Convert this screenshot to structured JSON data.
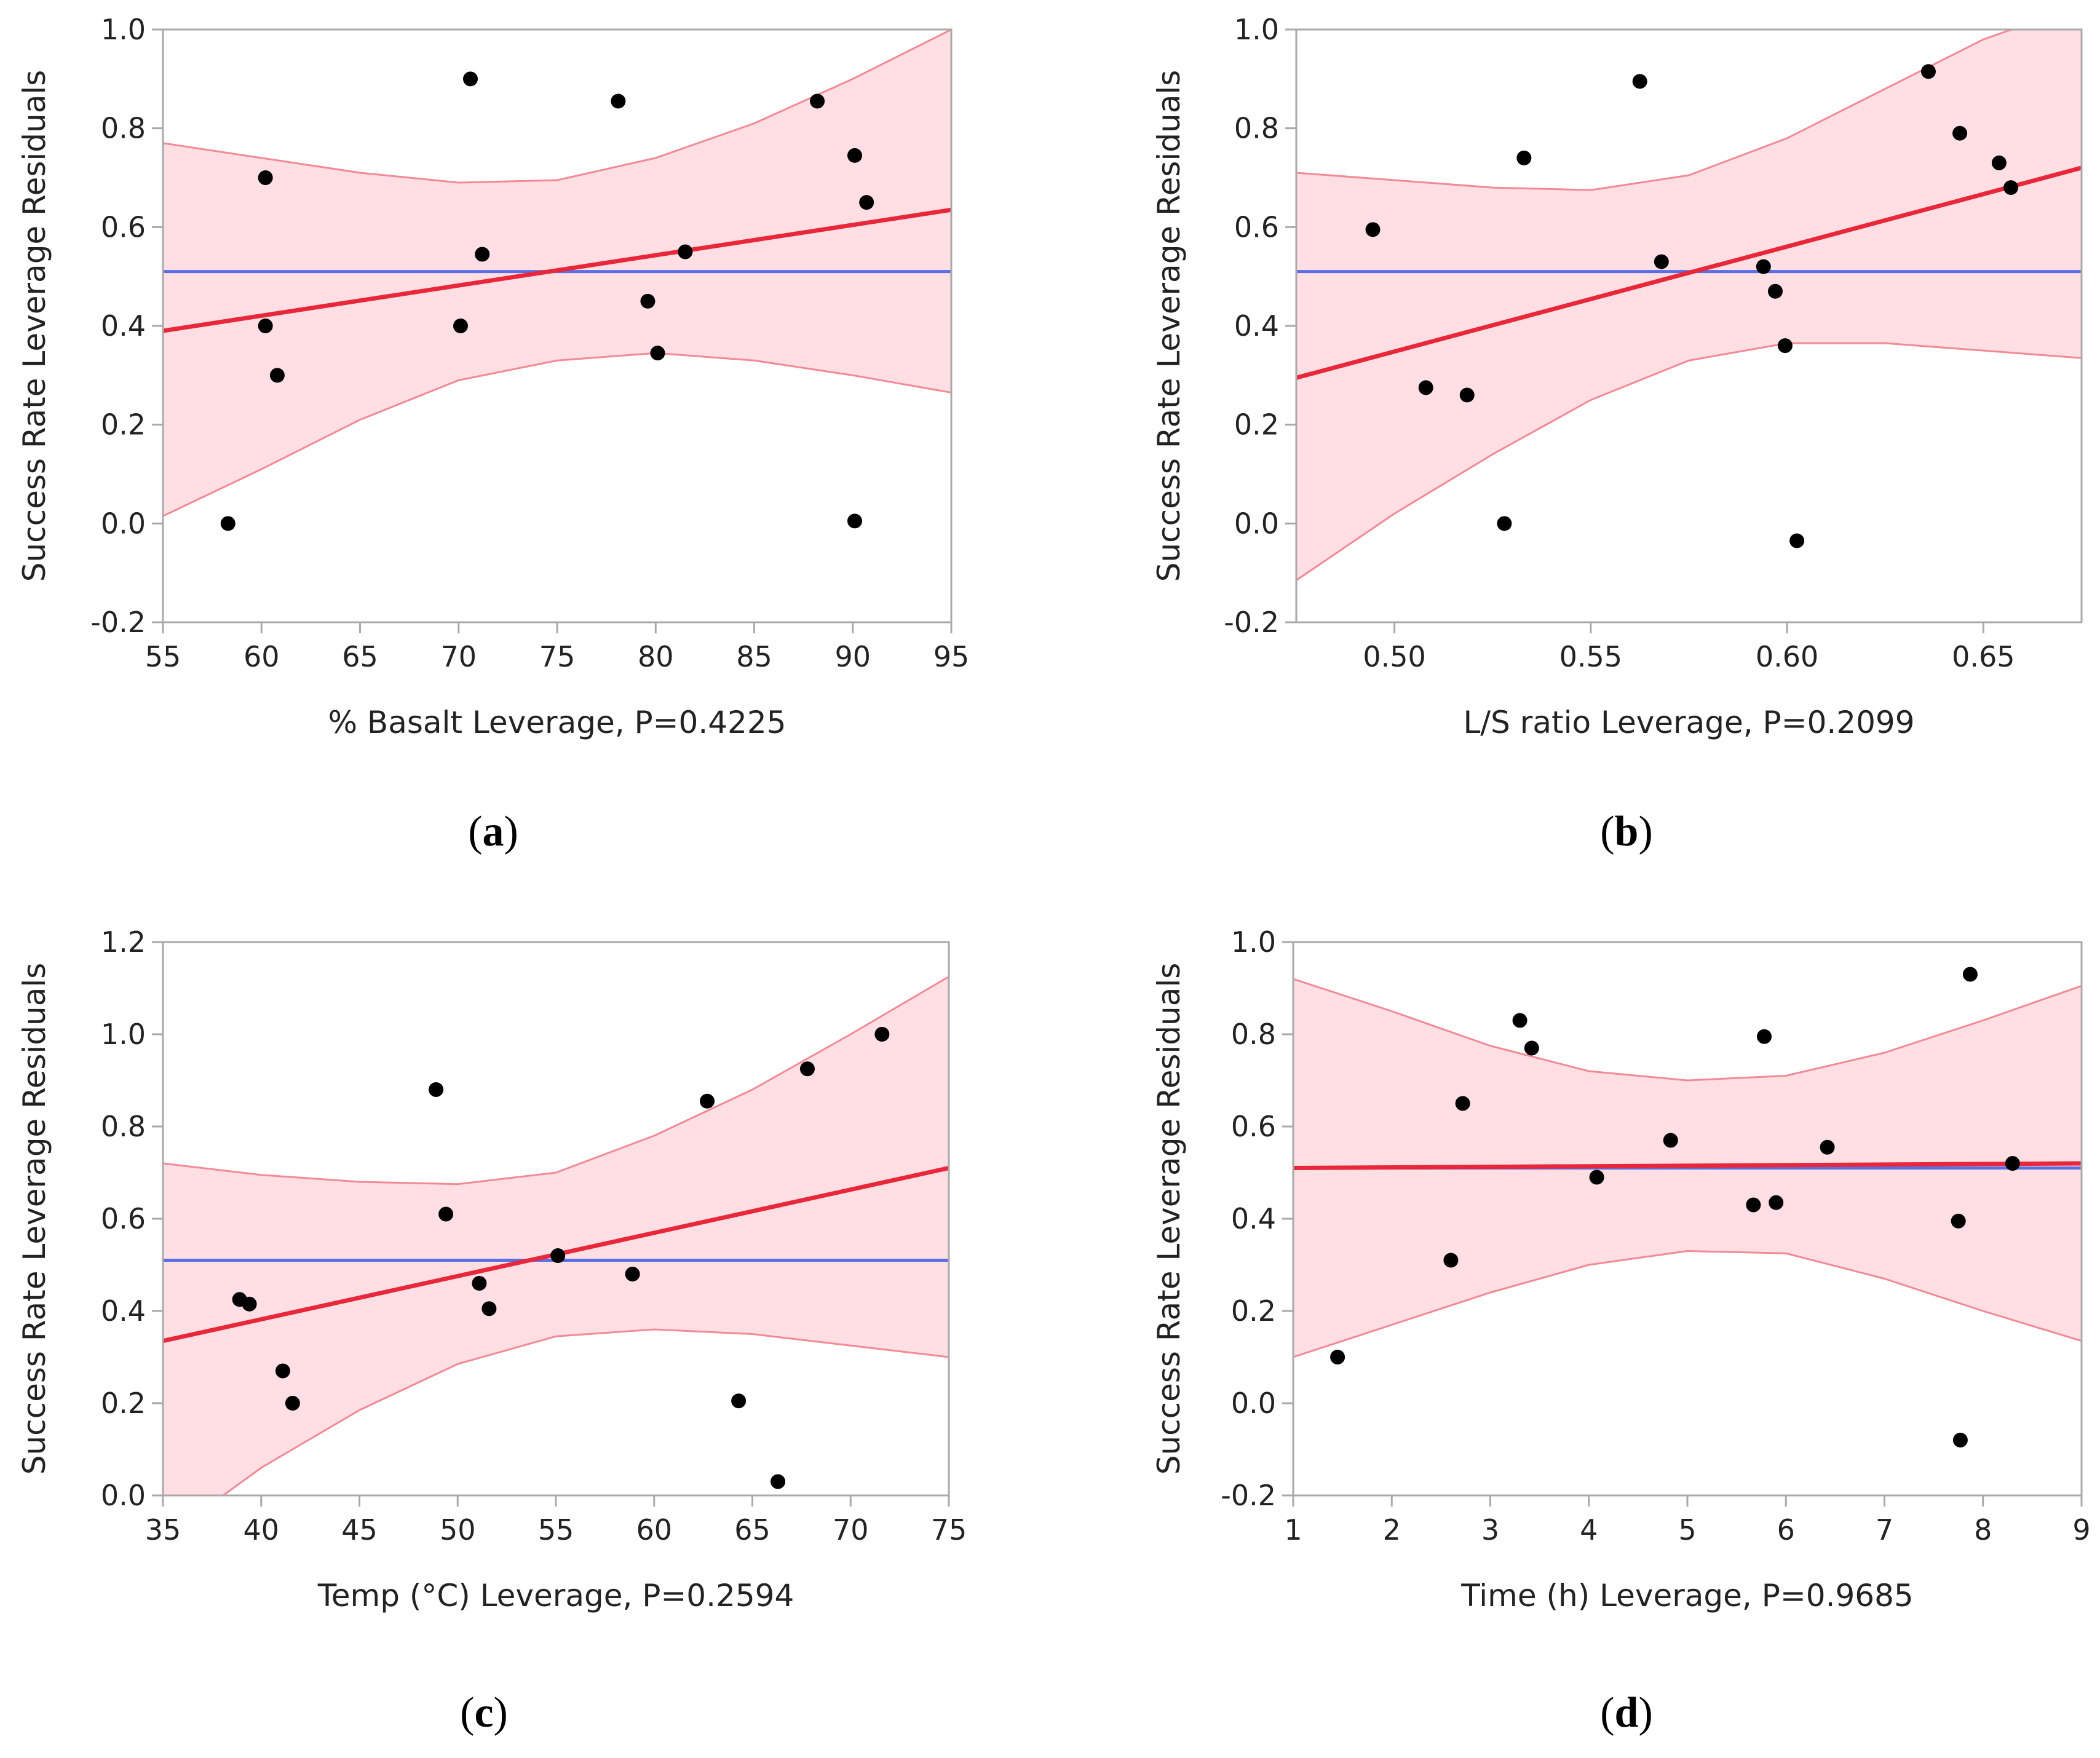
{
  "colors": {
    "fit_line": "#e8283a",
    "mean_line": "#5a6ee6",
    "band_fill": "#ffdfe3",
    "band_edge": "#f28a96",
    "point": "#000000",
    "frame": "#a9a9a9"
  },
  "chart_data": [
    {
      "type": "scatter",
      "panel": "a",
      "xlabel": "% Basalt Leverage, P=0.4225",
      "ylabel": "Success Rate Leverage Residuals",
      "xlim": [
        55,
        95
      ],
      "ylim": [
        -0.2,
        1.0
      ],
      "xticks": [
        "55",
        "60",
        "65",
        "70",
        "75",
        "80",
        "85",
        "90",
        "95"
      ],
      "yticks": [
        "-0.2",
        "0.0",
        "0.2",
        "0.4",
        "0.6",
        "0.8",
        "1.0"
      ],
      "mean": 0.51,
      "fit": [
        [
          55,
          0.39
        ],
        [
          95,
          0.635
        ]
      ],
      "band_upper": [
        [
          55,
          0.77
        ],
        [
          60,
          0.74
        ],
        [
          65,
          0.71
        ],
        [
          70,
          0.69
        ],
        [
          75,
          0.695
        ],
        [
          80,
          0.74
        ],
        [
          85,
          0.81
        ],
        [
          90,
          0.9
        ],
        [
          95,
          1.0
        ]
      ],
      "band_lower": [
        [
          55,
          0.015
        ],
        [
          60,
          0.11
        ],
        [
          65,
          0.21
        ],
        [
          70,
          0.29
        ],
        [
          75,
          0.33
        ],
        [
          80,
          0.345
        ],
        [
          85,
          0.33
        ],
        [
          90,
          0.3
        ],
        [
          95,
          0.265
        ]
      ],
      "points": [
        [
          58.3,
          0.0
        ],
        [
          60.2,
          0.7
        ],
        [
          60.2,
          0.4
        ],
        [
          60.8,
          0.3
        ],
        [
          70.1,
          0.4
        ],
        [
          70.6,
          0.9
        ],
        [
          71.2,
          0.545
        ],
        [
          78.1,
          0.855
        ],
        [
          79.6,
          0.45
        ],
        [
          80.1,
          0.345
        ],
        [
          81.5,
          0.55
        ],
        [
          88.2,
          0.855
        ],
        [
          90.1,
          0.745
        ],
        [
          90.1,
          0.005
        ],
        [
          90.7,
          0.65
        ]
      ]
    },
    {
      "type": "scatter",
      "panel": "b",
      "xlabel": "L/S ratio Leverage, P=0.2099",
      "ylabel": "Success Rate Leverage Residuals",
      "xlim": [
        0.475,
        0.675
      ],
      "ylim": [
        -0.2,
        1.0
      ],
      "xticks": [
        "0.50",
        "0.55",
        "0.60",
        "0.65"
      ],
      "xtick_values": [
        0.5,
        0.55,
        0.6,
        0.65
      ],
      "yticks": [
        "-0.2",
        "0.0",
        "0.2",
        "0.4",
        "0.6",
        "0.8",
        "1.0"
      ],
      "mean": 0.51,
      "fit": [
        [
          0.475,
          0.295
        ],
        [
          0.675,
          0.72
        ]
      ],
      "band_upper": [
        [
          0.475,
          0.71
        ],
        [
          0.5,
          0.695
        ],
        [
          0.525,
          0.68
        ],
        [
          0.55,
          0.675
        ],
        [
          0.575,
          0.705
        ],
        [
          0.6,
          0.78
        ],
        [
          0.625,
          0.88
        ],
        [
          0.65,
          0.98
        ],
        [
          0.675,
          1.05
        ]
      ],
      "band_lower": [
        [
          0.475,
          -0.115
        ],
        [
          0.5,
          0.02
        ],
        [
          0.525,
          0.14
        ],
        [
          0.55,
          0.25
        ],
        [
          0.575,
          0.33
        ],
        [
          0.6,
          0.365
        ],
        [
          0.625,
          0.365
        ],
        [
          0.65,
          0.35
        ],
        [
          0.675,
          0.335
        ]
      ],
      "points": [
        [
          0.4945,
          0.595
        ],
        [
          0.508,
          0.275
        ],
        [
          0.5185,
          0.26
        ],
        [
          0.528,
          0.0
        ],
        [
          0.533,
          0.74
        ],
        [
          0.5625,
          0.895
        ],
        [
          0.568,
          0.53
        ],
        [
          0.594,
          0.52
        ],
        [
          0.597,
          0.47
        ],
        [
          0.5995,
          0.36
        ],
        [
          0.6025,
          -0.035
        ],
        [
          0.636,
          0.915
        ],
        [
          0.644,
          0.79
        ],
        [
          0.654,
          0.73
        ],
        [
          0.657,
          0.68
        ]
      ]
    },
    {
      "type": "scatter",
      "panel": "c",
      "xlabel": "Temp (°C) Leverage, P=0.2594",
      "ylabel": "Success Rate Leverage Residuals",
      "xlim": [
        35,
        75
      ],
      "ylim": [
        0.0,
        1.2
      ],
      "xticks": [
        "35",
        "40",
        "45",
        "50",
        "55",
        "60",
        "65",
        "70",
        "75"
      ],
      "yticks": [
        "0.0",
        "0.2",
        "0.4",
        "0.6",
        "0.8",
        "1.0",
        "1.2"
      ],
      "mean": 0.51,
      "fit": [
        [
          35,
          0.335
        ],
        [
          75,
          0.71
        ]
      ],
      "band_upper": [
        [
          35,
          0.72
        ],
        [
          40,
          0.695
        ],
        [
          45,
          0.68
        ],
        [
          50,
          0.675
        ],
        [
          55,
          0.7
        ],
        [
          60,
          0.78
        ],
        [
          65,
          0.88
        ],
        [
          70,
          1.0
        ],
        [
          75,
          1.125
        ]
      ],
      "band_lower": [
        [
          35,
          -0.095
        ],
        [
          40,
          0.06
        ],
        [
          45,
          0.185
        ],
        [
          50,
          0.285
        ],
        [
          55,
          0.345
        ],
        [
          60,
          0.36
        ],
        [
          65,
          0.35
        ],
        [
          70,
          0.325
        ],
        [
          75,
          0.3
        ]
      ],
      "points": [
        [
          38.9,
          0.425
        ],
        [
          39.4,
          0.415
        ],
        [
          41.1,
          0.27
        ],
        [
          41.6,
          0.2
        ],
        [
          48.9,
          0.88
        ],
        [
          49.4,
          0.61
        ],
        [
          51.1,
          0.46
        ],
        [
          51.6,
          0.405
        ],
        [
          55.1,
          0.52
        ],
        [
          58.9,
          0.48
        ],
        [
          62.7,
          0.855
        ],
        [
          64.3,
          0.205
        ],
        [
          66.3,
          0.03
        ],
        [
          67.8,
          0.925
        ],
        [
          71.6,
          1.0
        ]
      ]
    },
    {
      "type": "scatter",
      "panel": "d",
      "xlabel": "Time (h) Leverage, P=0.9685",
      "ylabel": "Success Rate Leverage Residuals",
      "xlim": [
        1,
        9
      ],
      "ylim": [
        -0.2,
        1.0
      ],
      "xticks": [
        "1",
        "2",
        "3",
        "4",
        "5",
        "6",
        "7",
        "8",
        "9"
      ],
      "yticks": [
        "-0.2",
        "0.0",
        "0.2",
        "0.4",
        "0.6",
        "0.8",
        "1.0"
      ],
      "mean": 0.51,
      "fit": [
        [
          1,
          0.51
        ],
        [
          9,
          0.52
        ]
      ],
      "band_upper": [
        [
          1,
          0.92
        ],
        [
          2,
          0.85
        ],
        [
          3,
          0.775
        ],
        [
          4,
          0.72
        ],
        [
          5,
          0.7
        ],
        [
          6,
          0.71
        ],
        [
          7,
          0.76
        ],
        [
          8,
          0.83
        ],
        [
          9,
          0.905
        ]
      ],
      "band_lower": [
        [
          1,
          0.1
        ],
        [
          2,
          0.17
        ],
        [
          3,
          0.24
        ],
        [
          4,
          0.3
        ],
        [
          5,
          0.33
        ],
        [
          6,
          0.325
        ],
        [
          7,
          0.27
        ],
        [
          8,
          0.2
        ],
        [
          9,
          0.135
        ]
      ],
      "points": [
        [
          1.45,
          0.1
        ],
        [
          2.6,
          0.31
        ],
        [
          2.72,
          0.65
        ],
        [
          3.3,
          0.83
        ],
        [
          3.42,
          0.77
        ],
        [
          4.08,
          0.49
        ],
        [
          4.83,
          0.57
        ],
        [
          5.67,
          0.43
        ],
        [
          5.78,
          0.795
        ],
        [
          5.9,
          0.435
        ],
        [
          6.42,
          0.555
        ],
        [
          7.75,
          0.395
        ],
        [
          7.77,
          -0.08
        ],
        [
          7.87,
          0.93
        ],
        [
          8.3,
          0.52
        ]
      ]
    }
  ],
  "panel_labels": [
    {
      "open": "(",
      "letter": "a",
      "close": ")"
    },
    {
      "open": "(",
      "letter": "b",
      "close": ")"
    },
    {
      "open": "(",
      "letter": "c",
      "close": ")"
    },
    {
      "open": "(",
      "letter": "d",
      "close": ")"
    }
  ]
}
